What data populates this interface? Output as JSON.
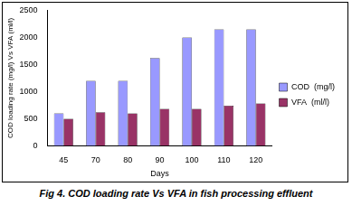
{
  "chart_data": {
    "type": "bar",
    "title": "Fig 4. COD loading rate Vs VFA in fish processing effluent",
    "x_label": "Days",
    "y_label": "COD loading rate (mg/l) Vs VFA (ml/l)",
    "categories": [
      "45",
      "70",
      "80",
      "90",
      "100",
      "110",
      "120"
    ],
    "series": [
      {
        "name": "COD  (mg/l)",
        "color": "#9999ff",
        "values": [
          600,
          1200,
          1200,
          1620,
          2000,
          2150,
          2150
        ]
      },
      {
        "name": "VFA  (ml/l)",
        "color": "#993366",
        "values": [
          500,
          620,
          600,
          680,
          680,
          740,
          780
        ]
      }
    ],
    "ylim": [
      0,
      2500
    ],
    "yticks": [
      0,
      500,
      1000,
      1500,
      2000,
      2500
    ],
    "grid": false,
    "legend": "right"
  }
}
